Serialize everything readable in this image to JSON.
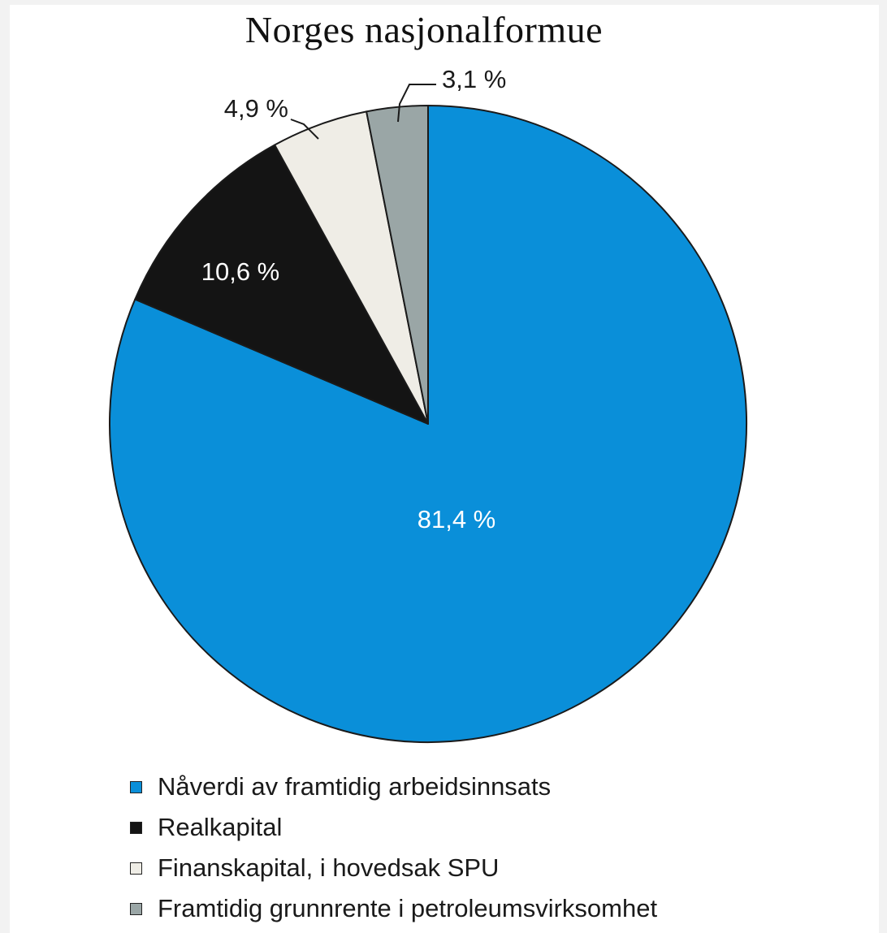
{
  "chart_data": {
    "type": "pie",
    "title": "Norges nasjonalformue",
    "start": "top",
    "direction": "clockwise",
    "slices": [
      {
        "name": "Nåverdi av framtidig arbeidsinnsats",
        "value": 81.4,
        "label": "81,4 %",
        "color": "#0a8fd9"
      },
      {
        "name": "Realkapital",
        "value": 10.6,
        "label": "10,6 %",
        "color": "#141414"
      },
      {
        "name": "Finanskapital, i hovedsak SPU",
        "value": 4.9,
        "label": "4,9 %",
        "color": "#efede6"
      },
      {
        "name": "Framtidig grunnrente i petroleumsvirksomhet",
        "value": 3.1,
        "label": "3,1 %",
        "color": "#9aa6a6"
      }
    ],
    "legend": "bottom"
  }
}
